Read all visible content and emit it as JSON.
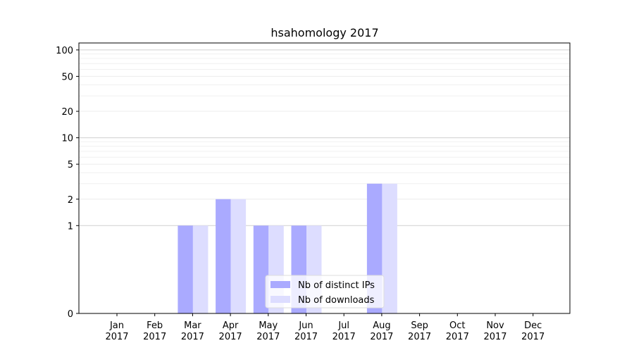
{
  "chart_data": {
    "type": "bar",
    "title": "hsahomology 2017",
    "categories": [
      "Jan\n2017",
      "Feb\n2017",
      "Mar\n2017",
      "Apr\n2017",
      "May\n2017",
      "Jun\n2017",
      "Jul\n2017",
      "Aug\n2017",
      "Sep\n2017",
      "Oct\n2017",
      "Nov\n2017",
      "Dec\n2017"
    ],
    "series": [
      {
        "name": "Nb of distinct IPs",
        "color": "#aaaaff",
        "values": [
          0,
          0,
          1,
          2,
          1,
          1,
          0,
          3,
          0,
          0,
          0,
          0
        ]
      },
      {
        "name": "Nb of downloads",
        "color": "#ddddff",
        "values": [
          0,
          0,
          1,
          2,
          1,
          1,
          0,
          3,
          0,
          0,
          0,
          0
        ]
      }
    ],
    "y_scale": "symlog",
    "ylim": [
      0,
      120
    ],
    "y_ticks": [
      0,
      1,
      2,
      5,
      10,
      20,
      50,
      100
    ],
    "grid": true,
    "legend_position": "lower-center"
  }
}
